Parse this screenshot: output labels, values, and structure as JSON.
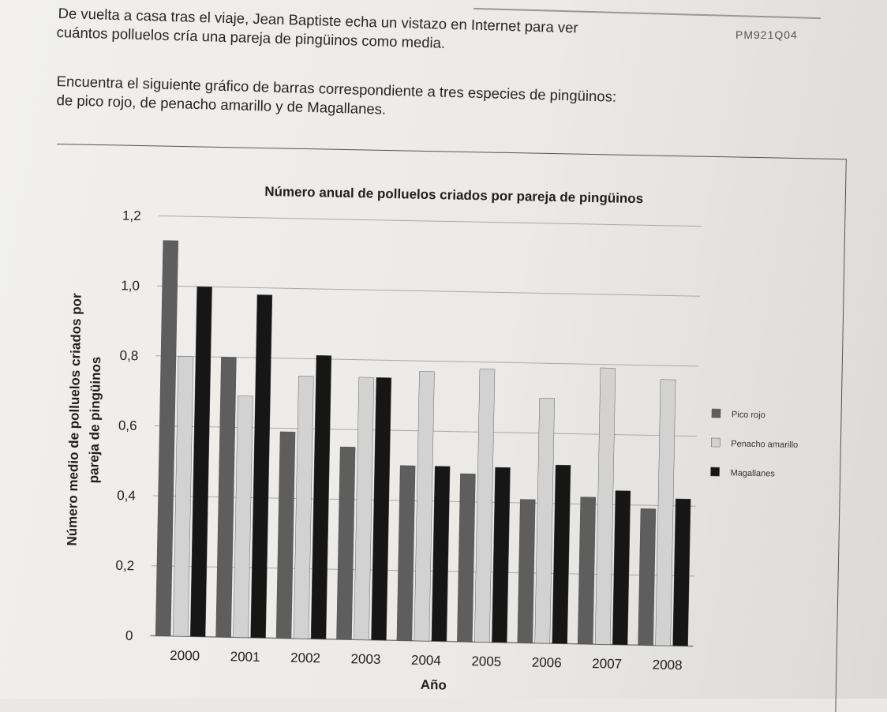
{
  "page": {
    "code": "PM921Q04",
    "para1": [
      "De vuelta a casa tras el viaje, Jean Baptiste echa un vistazo en Internet para ver",
      "cuántos polluelos cría una pareja de pingüinos como media."
    ],
    "para2": [
      "Encuentra el siguiente gráfico de barras correspondiente a tres especies de pingüinos:",
      "de pico rojo, de penacho amarillo y de Magallanes."
    ]
  },
  "colors": {
    "pico_rojo": "#5e5e5e",
    "penacho_amarillo": "#d2d2d2",
    "magallanes": "#161616"
  },
  "chart_data": {
    "type": "bar",
    "title": "Número anual de polluelos criados por pareja de pingüinos",
    "xlabel": "Año",
    "ylabel": [
      "Número medio de polluelos criados por",
      "pareja de pingüinos"
    ],
    "categories": [
      "2000",
      "2001",
      "2002",
      "2003",
      "2004",
      "2005",
      "2006",
      "2007",
      "2008"
    ],
    "ylim": [
      0,
      1.2
    ],
    "yticks": [
      "0",
      "0,2",
      "0,4",
      "0,6",
      "0,8",
      "1,0",
      "1,2"
    ],
    "grid": true,
    "legend_position": "right",
    "series": [
      {
        "name": "Pico rojo",
        "values": [
          1.13,
          0.8,
          0.59,
          0.55,
          0.5,
          0.48,
          0.41,
          0.42,
          0.39
        ]
      },
      {
        "name": "Penacho amarillo",
        "values": [
          0.8,
          0.69,
          0.75,
          0.75,
          0.77,
          0.78,
          0.7,
          0.79,
          0.76
        ]
      },
      {
        "name": "Magallanes",
        "values": [
          1.0,
          0.98,
          0.81,
          0.75,
          0.5,
          0.5,
          0.51,
          0.44,
          0.42
        ]
      }
    ]
  }
}
